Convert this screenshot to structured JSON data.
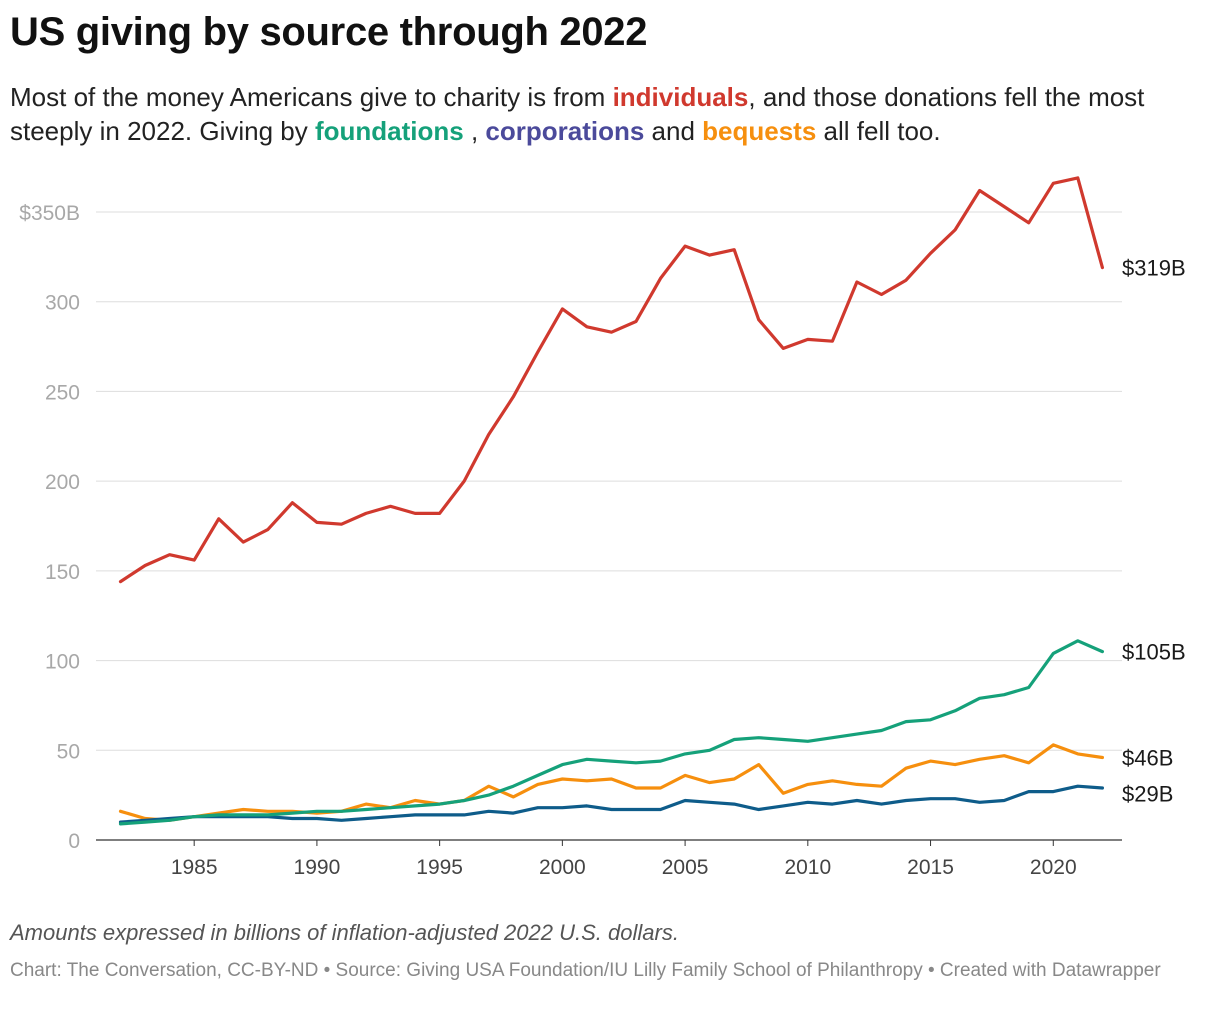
{
  "title": "US giving by source through 2022",
  "subtitle": {
    "part1": "Most of the money Americans give to charity is from ",
    "individuals": "individuals",
    "part2": ", and those donations fell the most steeply in 2022. Giving by ",
    "foundations": "foundations",
    "part3": " , ",
    "corporations": "corporations",
    "part4": " and ",
    "bequests": "bequests",
    "part5": " all fell too."
  },
  "note": "Amounts expressed in billions of inflation-adjusted 2022 U.S. dollars.",
  "footer": "Chart: The Conversation, CC-BY-ND • Source: Giving USA Foundation/IU Lilly Family School of Philanthropy • Created with Datawrapper",
  "colors": {
    "individuals": "#d0392e",
    "foundations": "#15a17a",
    "corporations": "#0e5c8a",
    "corporations_text": "#4b4a9b",
    "bequests": "#f68f0e",
    "grid": "#dddddd",
    "axis": "#333333",
    "tick_text": "#a8a8a8"
  },
  "chart_data": {
    "type": "line",
    "x": [
      1982,
      1983,
      1984,
      1985,
      1986,
      1987,
      1988,
      1989,
      1990,
      1991,
      1992,
      1993,
      1994,
      1995,
      1996,
      1997,
      1998,
      1999,
      2000,
      2001,
      2002,
      2003,
      2004,
      2005,
      2006,
      2007,
      2008,
      2009,
      2010,
      2011,
      2012,
      2013,
      2014,
      2015,
      2016,
      2017,
      2018,
      2019,
      2020,
      2021,
      2022
    ],
    "xlim": [
      1981,
      2022.8
    ],
    "ylim": [
      0,
      350
    ],
    "x_ticks": [
      1985,
      1990,
      1995,
      2000,
      2005,
      2010,
      2015,
      2020
    ],
    "y_ticks": [
      {
        "value": 0,
        "label": "0"
      },
      {
        "value": 50,
        "label": "50"
      },
      {
        "value": 100,
        "label": "100"
      },
      {
        "value": 150,
        "label": "150"
      },
      {
        "value": 200,
        "label": "200"
      },
      {
        "value": 250,
        "label": "250"
      },
      {
        "value": 300,
        "label": "300"
      },
      {
        "value": 350,
        "label": "$350B"
      }
    ],
    "grid": true,
    "series": [
      {
        "key": "individuals",
        "end_label": "$319B",
        "values": [
          144,
          153,
          159,
          156,
          179,
          166,
          173,
          188,
          177,
          176,
          182,
          186,
          182,
          182,
          200,
          226,
          247,
          272,
          296,
          286,
          283,
          289,
          313,
          331,
          326,
          329,
          290,
          274,
          279,
          278,
          311,
          304,
          312,
          327,
          340,
          362,
          353,
          344,
          366,
          369,
          319
        ]
      },
      {
        "key": "foundations",
        "end_label": "$105B",
        "values": [
          9,
          10,
          11,
          13,
          14,
          14,
          14,
          15,
          16,
          16,
          17,
          18,
          19,
          20,
          22,
          25,
          30,
          36,
          42,
          45,
          44,
          43,
          44,
          48,
          50,
          56,
          57,
          56,
          55,
          57,
          59,
          61,
          66,
          67,
          72,
          79,
          81,
          85,
          104,
          111,
          105
        ]
      },
      {
        "key": "bequests",
        "end_label": "$46B",
        "values": [
          16,
          12,
          11,
          13,
          15,
          17,
          16,
          16,
          15,
          16,
          20,
          18,
          22,
          20,
          22,
          30,
          24,
          31,
          34,
          33,
          34,
          29,
          29,
          36,
          32,
          34,
          42,
          26,
          31,
          33,
          31,
          30,
          40,
          44,
          42,
          45,
          47,
          43,
          53,
          48,
          46
        ]
      },
      {
        "key": "corporations",
        "end_label": "$29B",
        "values": [
          10,
          11,
          12,
          13,
          13,
          13,
          13,
          12,
          12,
          11,
          12,
          13,
          14,
          14,
          14,
          16,
          15,
          18,
          18,
          19,
          17,
          17,
          17,
          22,
          21,
          20,
          17,
          19,
          21,
          20,
          22,
          20,
          22,
          23,
          23,
          21,
          22,
          27,
          27,
          30,
          29
        ]
      }
    ]
  }
}
